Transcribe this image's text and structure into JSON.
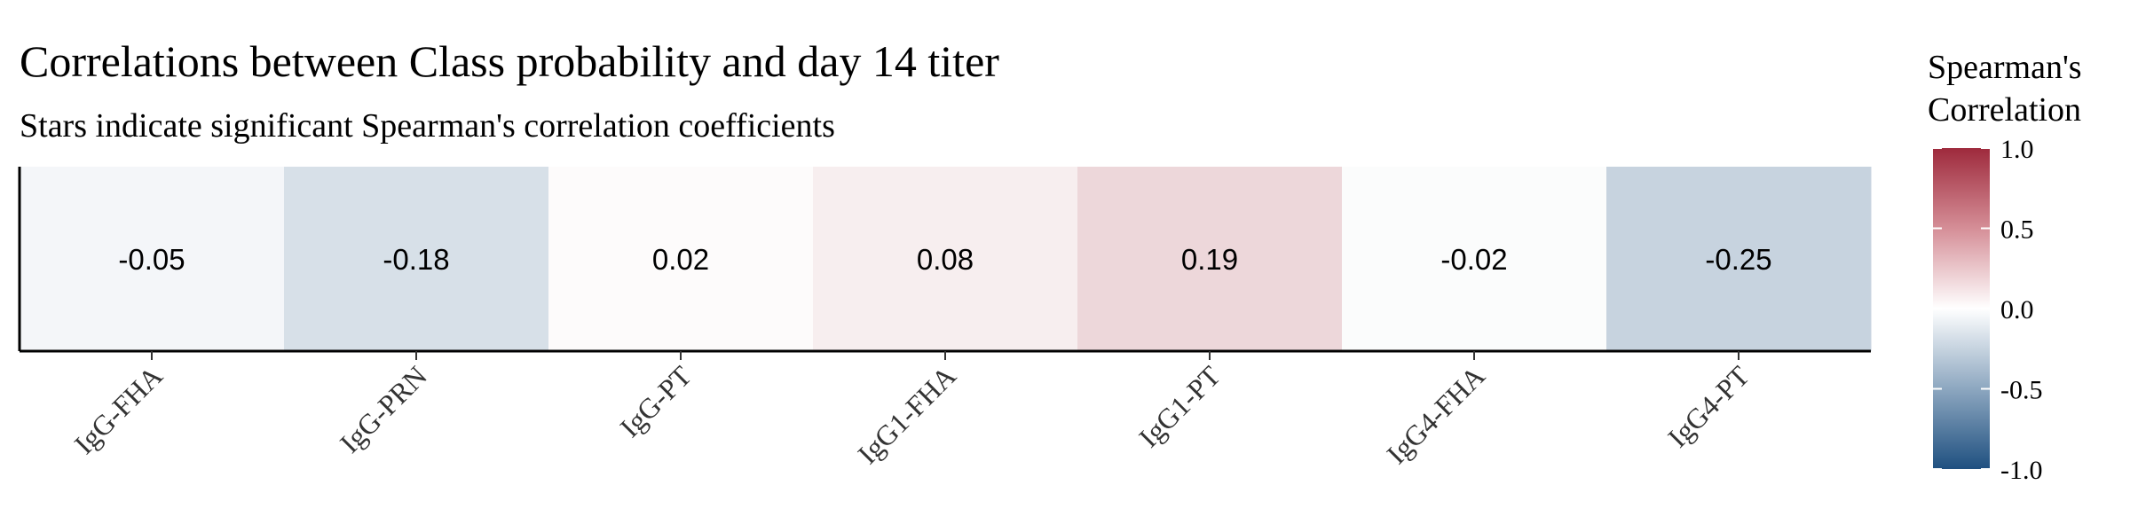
{
  "chart_data": {
    "type": "heatmap",
    "title": "Correlations between Class probability and day 14 titer",
    "subtitle": "Stars indicate significant Spearman's correlation coefficients",
    "xlabel": "",
    "ylabel": "",
    "categories": [
      "IgG-FHA",
      "IgG-PRN",
      "IgG-PT",
      "IgG1-FHA",
      "IgG1-PT",
      "IgG4-FHA",
      "IgG4-PT"
    ],
    "values": [
      -0.05,
      -0.18,
      0.02,
      0.08,
      0.19,
      -0.02,
      -0.25
    ],
    "value_labels": [
      "-0.05",
      "-0.18",
      "0.02",
      "0.08",
      "0.19",
      "-0.02",
      "-0.25"
    ],
    "legend": {
      "title_line1": "Spearman's",
      "title_line2": "Correlation",
      "range": [
        -1.0,
        1.0
      ],
      "ticks": [
        1.0,
        0.5,
        0.0,
        -0.5,
        -1.0
      ],
      "tick_labels": [
        "1.0",
        "0.5",
        "0.0",
        "-0.5",
        "-1.0"
      ],
      "placement": "right"
    },
    "colors": {
      "low": "#1f5080",
      "mid": "#ffffff",
      "high": "#9e2a3c"
    }
  }
}
